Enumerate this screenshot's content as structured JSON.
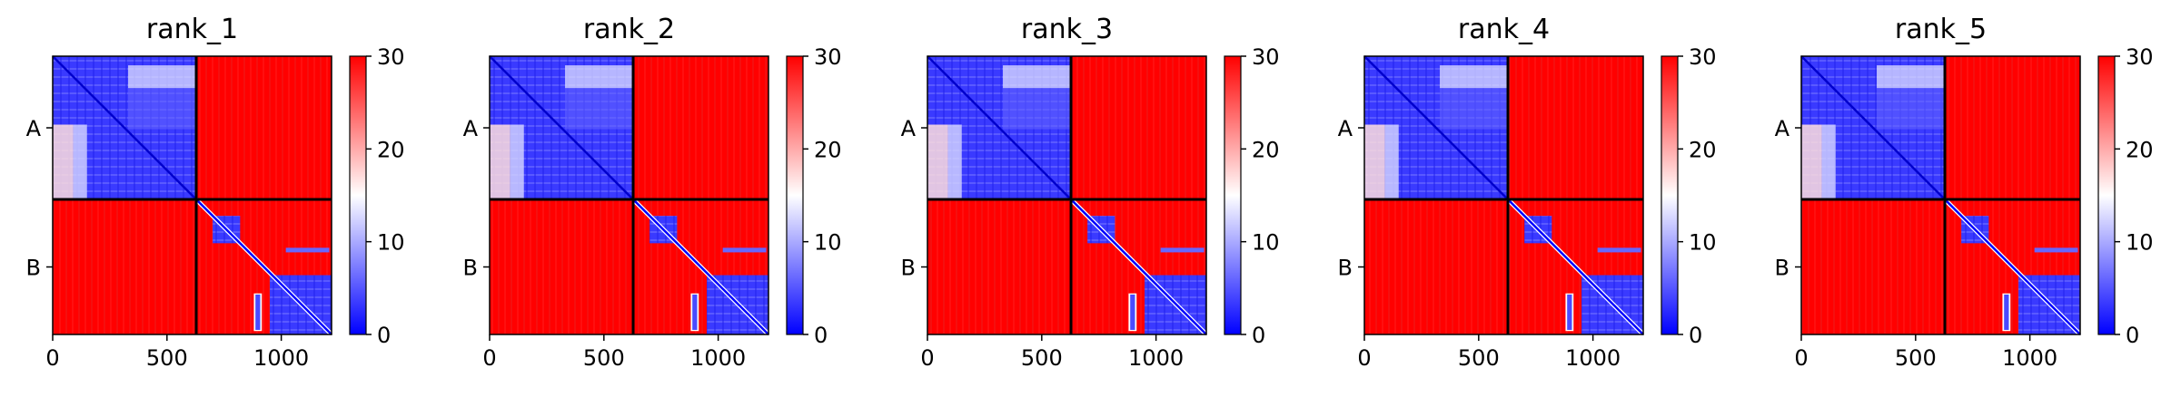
{
  "colors": {
    "low": "#0000ff",
    "mid": "#ffffff",
    "high": "#ff0000",
    "frame": "#000000"
  },
  "chart_data": [
    {
      "type": "heatmap",
      "title": "rank_1",
      "chain_labels": [
        "A",
        "B"
      ],
      "chain_boundary": 628,
      "n_residues": 1220,
      "x_ticks": [
        0,
        500,
        1000
      ],
      "xlim": [
        0,
        1220
      ],
      "colorbar": {
        "ticks": [
          0,
          10,
          20,
          30
        ],
        "range": [
          0,
          30
        ],
        "colormap": "bwr"
      }
    },
    {
      "type": "heatmap",
      "title": "rank_2",
      "chain_labels": [
        "A",
        "B"
      ],
      "chain_boundary": 628,
      "n_residues": 1220,
      "x_ticks": [
        0,
        500,
        1000
      ],
      "xlim": [
        0,
        1220
      ],
      "colorbar": {
        "ticks": [
          0,
          10,
          20,
          30
        ],
        "range": [
          0,
          30
        ],
        "colormap": "bwr"
      }
    },
    {
      "type": "heatmap",
      "title": "rank_3",
      "chain_labels": [
        "A",
        "B"
      ],
      "chain_boundary": 628,
      "n_residues": 1220,
      "x_ticks": [
        0,
        500,
        1000
      ],
      "xlim": [
        0,
        1220
      ],
      "colorbar": {
        "ticks": [
          0,
          10,
          20,
          30
        ],
        "range": [
          0,
          30
        ],
        "colormap": "bwr"
      }
    },
    {
      "type": "heatmap",
      "title": "rank_4",
      "chain_labels": [
        "A",
        "B"
      ],
      "chain_boundary": 628,
      "n_residues": 1220,
      "x_ticks": [
        0,
        500,
        1000
      ],
      "xlim": [
        0,
        1220
      ],
      "colorbar": {
        "ticks": [
          0,
          10,
          20,
          30
        ],
        "range": [
          0,
          30
        ],
        "colormap": "bwr"
      }
    },
    {
      "type": "heatmap",
      "title": "rank_5",
      "chain_labels": [
        "A",
        "B"
      ],
      "chain_boundary": 628,
      "n_residues": 1220,
      "x_ticks": [
        0,
        500,
        1000
      ],
      "xlim": [
        0,
        1220
      ],
      "colorbar": {
        "ticks": [
          0,
          10,
          20,
          30
        ],
        "range": [
          0,
          30
        ],
        "colormap": "bwr"
      }
    }
  ]
}
